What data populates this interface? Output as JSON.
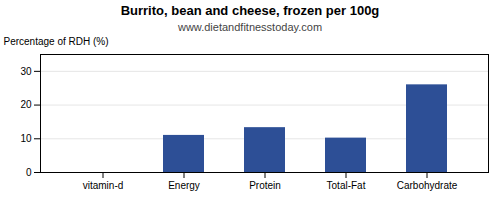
{
  "chart_data": {
    "type": "bar",
    "title": "Burrito, bean and cheese, frozen per 100g",
    "subtitle": "www.dietandfitnesstoday.com",
    "categories": [
      "vitamin-d",
      "Energy",
      "Protein",
      "Total-Fat",
      "Carbohydrate"
    ],
    "values": [
      0,
      11,
      13.3,
      10.2,
      26
    ],
    "color": "#2d4f96",
    "ylabel": "Percentage of RDH (%)",
    "ylim": [
      0,
      35
    ],
    "yticks": [
      0,
      10,
      20,
      30
    ],
    "grid": true
  }
}
